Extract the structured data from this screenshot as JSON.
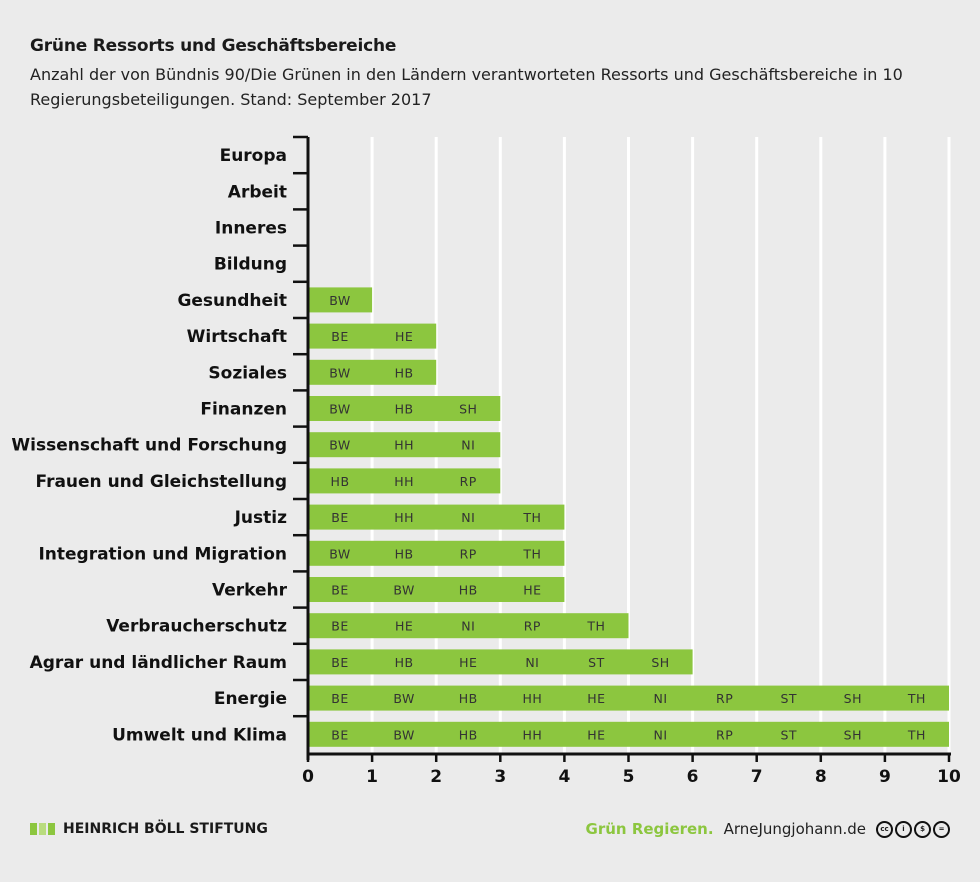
{
  "chart_data": {
    "type": "bar",
    "orientation": "horizontal",
    "stacked_segments": true,
    "title": "Grüne Ressorts und Geschäftsbereiche",
    "subtitle": "Anzahl der von Bündnis 90/Die Grünen in den Ländern verantworteten Ressorts und Geschäftsbereiche in 10 Regierungsbeteiligungen. Stand: September 2017",
    "xlim": [
      0,
      10
    ],
    "xticks": [
      0,
      1,
      2,
      3,
      4,
      5,
      6,
      7,
      8,
      9,
      10
    ],
    "grid": true,
    "bar_color": "#8cc63f",
    "categories": [
      "Europa",
      "Arbeit",
      "Inneres",
      "Bildung",
      "Gesundheit",
      "Wirtschaft",
      "Soziales",
      "Finanzen",
      "Wissenschaft und Forschung",
      "Frauen und Gleichstellung",
      "Justiz",
      "Integration und Migration",
      "Verkehr",
      "Verbraucherschutz",
      "Agrar und ländlicher Raum",
      "Energie",
      "Umwelt und Klima"
    ],
    "values": [
      0,
      0,
      0,
      0,
      1,
      2,
      2,
      3,
      3,
      3,
      4,
      4,
      4,
      5,
      6,
      10,
      10
    ],
    "segment_labels": [
      [],
      [],
      [],
      [],
      [
        "BW"
      ],
      [
        "BE",
        "HE"
      ],
      [
        "BW",
        "HB"
      ],
      [
        "BW",
        "HB",
        "SH"
      ],
      [
        "BW",
        "HH",
        "NI"
      ],
      [
        "HB",
        "HH",
        "RP"
      ],
      [
        "BE",
        "HH",
        "NI",
        "TH"
      ],
      [
        "BW",
        "HB",
        "RP",
        "TH"
      ],
      [
        "BE",
        "BW",
        "HB",
        "HE"
      ],
      [
        "BE",
        "HE",
        "NI",
        "RP",
        "TH"
      ],
      [
        "BE",
        "HB",
        "HE",
        "NI",
        "ST",
        "SH"
      ],
      [
        "BE",
        "BW",
        "HB",
        "HH",
        "HE",
        "NI",
        "RP",
        "ST",
        "SH",
        "TH"
      ],
      [
        "BE",
        "BW",
        "HB",
        "HH",
        "HE",
        "NI",
        "RP",
        "ST",
        "SH",
        "TH"
      ]
    ]
  },
  "footer": {
    "logo_text": "HEINRICH BÖLL STIFTUNG",
    "tagline": "Grün Regieren.",
    "website": "ArneJungjohann.de"
  },
  "icons": [
    "cc-license-icons"
  ]
}
